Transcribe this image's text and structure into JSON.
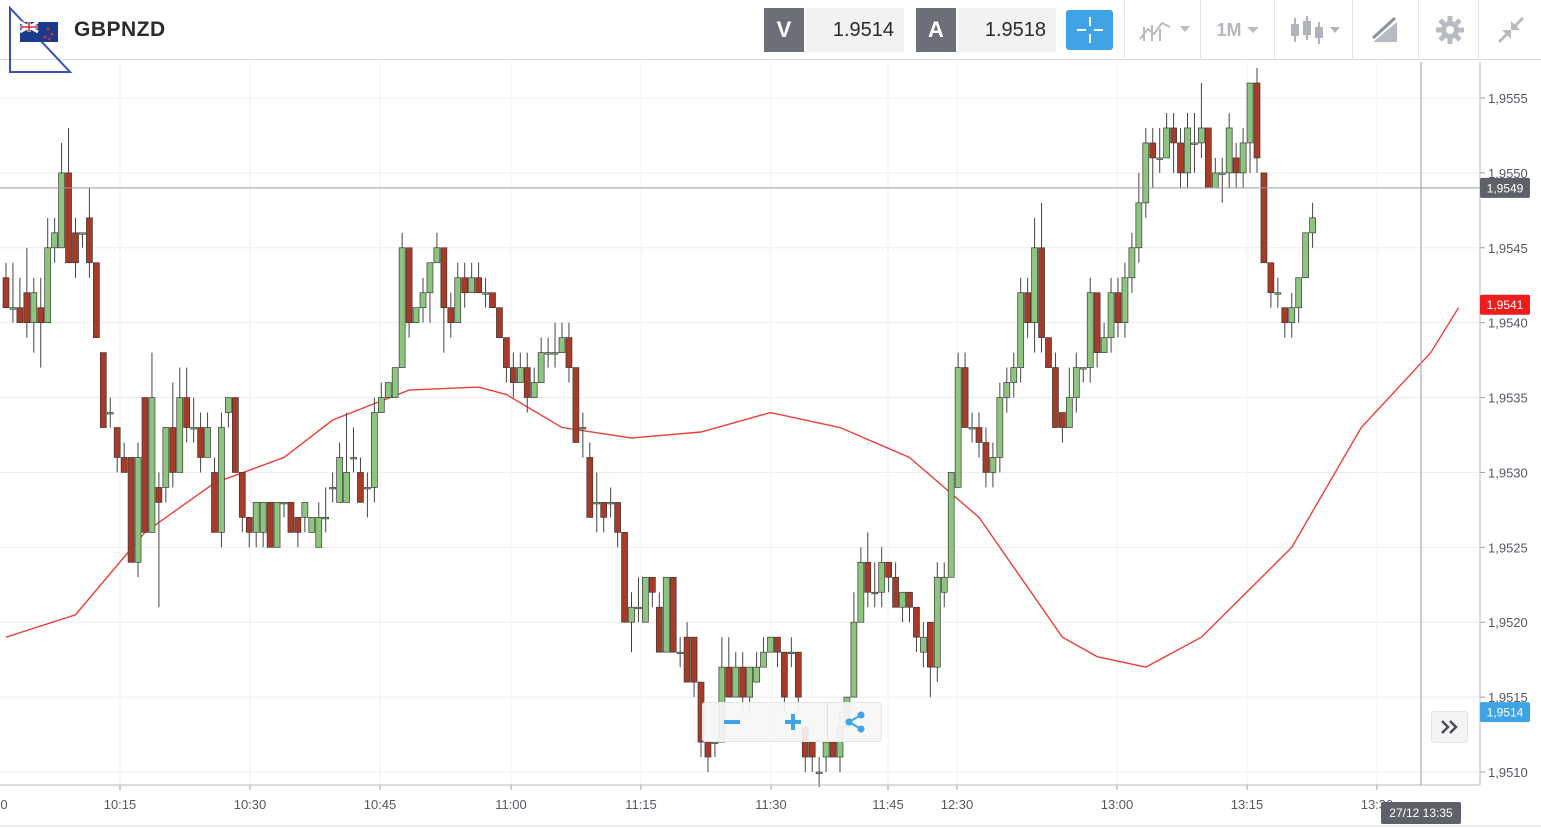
{
  "header": {
    "symbol": "GBPNZD",
    "bid_label": "V",
    "bid_value": "1.9514",
    "ask_label": "A",
    "ask_value": "1.9518",
    "timeframe": "1M",
    "icons": [
      "flag-icon",
      "crosshair-icon",
      "line-chart-icon",
      "candlestick-icon",
      "drawing-icon",
      "gear-icon",
      "collapse-icon"
    ],
    "accent_color": "#3fa4e6"
  },
  "chart_data": {
    "type": "candlestick",
    "symbol": "GBPNZD",
    "interval": "1M",
    "ylim": [
      1.95085,
      1.9557
    ],
    "y_ticks": [
      "1,9510",
      "1,9515",
      "1,9520",
      "1,9525",
      "1,9530",
      "1,9535",
      "1,9540",
      "1,9545",
      "1,9550",
      "1,9555"
    ],
    "x_ticks": [
      "10:15",
      "10:30",
      "10:45",
      "11:00",
      "11:15",
      "11:30",
      "11:45",
      "12:30",
      "13:00",
      "13:15",
      "13:30"
    ],
    "x_ticks_partial": [
      "0"
    ],
    "up_color": "#8dc47e",
    "down_color": "#a83a28",
    "candles": [
      [
        1.9543,
        1.9541,
        1.9544,
        1.9541
      ],
      [
        1.9541,
        1.9541,
        1.9544,
        1.954
      ],
      [
        1.9541,
        1.954,
        1.9543,
        1.954
      ],
      [
        1.9542,
        1.954,
        1.9545,
        1.9539
      ],
      [
        1.954,
        1.9542,
        1.9543,
        1.9538
      ],
      [
        1.9541,
        1.954,
        1.9543,
        1.9537
      ],
      [
        1.954,
        1.9545,
        1.9547,
        1.954
      ],
      [
        1.9545,
        1.9546,
        1.9547,
        1.9544
      ],
      [
        1.9545,
        1.955,
        1.9552,
        1.9545
      ],
      [
        1.955,
        1.9544,
        1.9553,
        1.9544
      ],
      [
        1.9546,
        1.9544,
        1.9547,
        1.9543
      ],
      [
        1.9546,
        1.9546,
        1.9546,
        1.9545
      ],
      [
        1.9547,
        1.9544,
        1.9549,
        1.9543
      ],
      [
        1.9544,
        1.9539,
        1.9544,
        1.9539
      ],
      [
        1.9538,
        1.9533,
        1.9538,
        1.9533
      ],
      [
        1.9534,
        1.9534,
        1.9535,
        1.9533
      ],
      [
        1.9533,
        1.9531,
        1.9533,
        1.953
      ],
      [
        1.9531,
        1.953,
        1.9532,
        1.953
      ],
      [
        1.9531,
        1.9524,
        1.9531,
        1.9524
      ],
      [
        1.9524,
        1.9531,
        1.9532,
        1.9523
      ],
      [
        1.9535,
        1.9526,
        1.9535,
        1.9526
      ],
      [
        1.9526,
        1.9535,
        1.9538,
        1.9526
      ],
      [
        1.9529,
        1.9528,
        1.953,
        1.9521
      ],
      [
        1.9529,
        1.9533,
        1.9533,
        1.9528
      ],
      [
        1.9533,
        1.953,
        1.9536,
        1.9529
      ],
      [
        1.953,
        1.9535,
        1.9537,
        1.953
      ],
      [
        1.9535,
        1.9533,
        1.9537,
        1.9532
      ],
      [
        1.9533,
        1.9533,
        1.9535,
        1.9532
      ],
      [
        1.9533,
        1.9531,
        1.9534,
        1.953
      ],
      [
        1.9531,
        1.9533,
        1.9534,
        1.9531
      ],
      [
        1.953,
        1.9526,
        1.9531,
        1.9526
      ],
      [
        1.9526,
        1.9533,
        1.9534,
        1.9525
      ],
      [
        1.9534,
        1.9535,
        1.9535,
        1.9533
      ],
      [
        1.9535,
        1.953,
        1.9535,
        1.953
      ],
      [
        1.953,
        1.9527,
        1.953,
        1.9526
      ],
      [
        1.9527,
        1.9526,
        1.9527,
        1.9525
      ],
      [
        1.9526,
        1.9528,
        1.9528,
        1.9525
      ],
      [
        1.9526,
        1.9528,
        1.9528,
        1.9525
      ],
      [
        1.9528,
        1.9525,
        1.9528,
        1.9525
      ],
      [
        1.9525,
        1.9528,
        1.9528,
        1.9525
      ],
      [
        1.9528,
        1.9528,
        1.9528,
        1.9527
      ],
      [
        1.9528,
        1.9526,
        1.9528,
        1.9526
      ],
      [
        1.9527,
        1.9526,
        1.9527,
        1.9525
      ],
      [
        1.9527,
        1.9528,
        1.9528,
        1.9526
      ],
      [
        1.9526,
        1.9527,
        1.9527,
        1.9526
      ],
      [
        1.9525,
        1.9527,
        1.9528,
        1.9525
      ],
      [
        1.9527,
        1.9527,
        1.9529,
        1.9526
      ],
      [
        1.9529,
        1.9529,
        1.953,
        1.9528
      ],
      [
        1.9528,
        1.9531,
        1.9532,
        1.9528
      ],
      [
        1.9528,
        1.953,
        1.9534,
        1.9528
      ],
      [
        1.9531,
        1.9531,
        1.9533,
        1.953
      ],
      [
        1.953,
        1.9528,
        1.9531,
        1.9528
      ],
      [
        1.9529,
        1.9529,
        1.953,
        1.9527
      ],
      [
        1.9529,
        1.9534,
        1.9535,
        1.9528
      ],
      [
        1.9534,
        1.9535,
        1.9536,
        1.9534
      ],
      [
        1.9535,
        1.9536,
        1.9536,
        1.9535
      ],
      [
        1.9535,
        1.9537,
        1.9537,
        1.9535
      ],
      [
        1.9537,
        1.9545,
        1.9546,
        1.9537
      ],
      [
        1.9545,
        1.954,
        1.9545,
        1.9539
      ],
      [
        1.954,
        1.9541,
        1.9541,
        1.954
      ],
      [
        1.9541,
        1.9542,
        1.9543,
        1.954
      ],
      [
        1.9542,
        1.9544,
        1.9544,
        1.954
      ],
      [
        1.9544,
        1.9545,
        1.9546,
        1.9544
      ],
      [
        1.9545,
        1.9541,
        1.9545,
        1.9538
      ],
      [
        1.9541,
        1.954,
        1.9542,
        1.9539
      ],
      [
        1.954,
        1.9543,
        1.9544,
        1.954
      ],
      [
        1.9543,
        1.9542,
        1.9544,
        1.9541
      ],
      [
        1.9542,
        1.9543,
        1.9544,
        1.9542
      ],
      [
        1.9543,
        1.9542,
        1.9544,
        1.9542
      ],
      [
        1.9542,
        1.9542,
        1.9543,
        1.9541
      ],
      [
        1.9542,
        1.9541,
        1.9542,
        1.9541
      ],
      [
        1.9541,
        1.9539,
        1.9541,
        1.9539
      ],
      [
        1.9539,
        1.9537,
        1.9539,
        1.9536
      ],
      [
        1.9537,
        1.9536,
        1.9538,
        1.9535
      ],
      [
        1.9536,
        1.9537,
        1.9538,
        1.9536
      ],
      [
        1.9537,
        1.9535,
        1.9538,
        1.9534
      ],
      [
        1.9535,
        1.9536,
        1.9537,
        1.9535
      ],
      [
        1.9536,
        1.9538,
        1.9539,
        1.9536
      ],
      [
        1.9538,
        1.9538,
        1.9539,
        1.9537
      ],
      [
        1.9538,
        1.9538,
        1.954,
        1.9537
      ],
      [
        1.9538,
        1.9539,
        1.954,
        1.9538
      ],
      [
        1.9539,
        1.9537,
        1.954,
        1.9536
      ],
      [
        1.9537,
        1.9532,
        1.9537,
        1.9532
      ],
      [
        1.9533,
        1.9533,
        1.9534,
        1.9531
      ],
      [
        1.9531,
        1.9527,
        1.9532,
        1.9527
      ],
      [
        1.9528,
        1.9528,
        1.953,
        1.9526
      ],
      [
        1.9528,
        1.9527,
        1.9528,
        1.9526
      ],
      [
        1.9528,
        1.9528,
        1.9529,
        1.9527
      ],
      [
        1.9528,
        1.9526,
        1.9528,
        1.9525
      ],
      [
        1.9526,
        1.952,
        1.9526,
        1.952
      ],
      [
        1.952,
        1.9521,
        1.9522,
        1.9518
      ],
      [
        1.9521,
        1.9521,
        1.9523,
        1.952
      ],
      [
        1.952,
        1.9523,
        1.9523,
        1.952
      ],
      [
        1.9523,
        1.9522,
        1.9523,
        1.9521
      ],
      [
        1.9521,
        1.9518,
        1.9522,
        1.9518
      ],
      [
        1.9518,
        1.9523,
        1.9523,
        1.9518
      ],
      [
        1.9523,
        1.9518,
        1.9523,
        1.9518
      ],
      [
        1.9518,
        1.9518,
        1.9519,
        1.9517
      ],
      [
        1.9519,
        1.9516,
        1.952,
        1.9516
      ],
      [
        1.9519,
        1.9516,
        1.9519,
        1.9515
      ],
      [
        1.9516,
        1.9512,
        1.9516,
        1.9511
      ],
      [
        1.9512,
        1.9511,
        1.9512,
        1.951
      ],
      [
        1.9512,
        1.9512,
        1.9512,
        1.9511
      ],
      [
        1.9512,
        1.9517,
        1.9519,
        1.9512
      ],
      [
        1.9517,
        1.9515,
        1.9519,
        1.9515
      ],
      [
        1.9515,
        1.9517,
        1.9518,
        1.9515
      ],
      [
        1.9517,
        1.9515,
        1.9518,
        1.9514
      ],
      [
        1.9515,
        1.9517,
        1.9517,
        1.9514
      ],
      [
        1.9516,
        1.9517,
        1.9518,
        1.9516
      ],
      [
        1.9517,
        1.9518,
        1.9519,
        1.9517
      ],
      [
        1.9518,
        1.9519,
        1.9519,
        1.9518
      ],
      [
        1.9519,
        1.9518,
        1.9519,
        1.9517
      ],
      [
        1.9518,
        1.9515,
        1.9518,
        1.9514
      ],
      [
        1.9518,
        1.9518,
        1.9519,
        1.9517
      ],
      [
        1.9518,
        1.9515,
        1.9518,
        1.9514
      ],
      [
        1.9513,
        1.9511,
        1.9513,
        1.951
      ],
      [
        1.9512,
        1.9511,
        1.9512,
        1.951
      ],
      [
        1.951,
        1.951,
        1.9511,
        1.9509
      ],
      [
        1.9511,
        1.9512,
        1.9512,
        1.951
      ],
      [
        1.9512,
        1.9511,
        1.9512,
        1.9511
      ],
      [
        1.9511,
        1.9513,
        1.9514,
        1.951
      ],
      [
        1.9513,
        1.9515,
        1.9515,
        1.9513
      ],
      [
        1.9515,
        1.952,
        1.9522,
        1.9515
      ],
      [
        1.952,
        1.9524,
        1.9525,
        1.952
      ],
      [
        1.9524,
        1.9522,
        1.9526,
        1.9521
      ],
      [
        1.9522,
        1.9522,
        1.9524,
        1.9521
      ],
      [
        1.9522,
        1.9524,
        1.9525,
        1.9521
      ],
      [
        1.9524,
        1.9523,
        1.9524,
        1.9522
      ],
      [
        1.9523,
        1.9521,
        1.9524,
        1.9521
      ],
      [
        1.9521,
        1.9522,
        1.9522,
        1.952
      ],
      [
        1.9522,
        1.9521,
        1.9522,
        1.952
      ],
      [
        1.9521,
        1.9519,
        1.9521,
        1.9518
      ],
      [
        1.9518,
        1.9519,
        1.952,
        1.9517
      ],
      [
        1.952,
        1.9517,
        1.952,
        1.9515
      ],
      [
        1.9517,
        1.9523,
        1.9524,
        1.9516
      ],
      [
        1.9522,
        1.9523,
        1.9524,
        1.9521
      ],
      [
        1.9523,
        1.953,
        1.953,
        1.9523
      ],
      [
        1.9529,
        1.9537,
        1.9538,
        1.9529
      ],
      [
        1.9537,
        1.9533,
        1.9538,
        1.9533
      ],
      [
        1.9533,
        1.9533,
        1.9534,
        1.9532
      ],
      [
        1.9533,
        1.9532,
        1.9534,
        1.9531
      ],
      [
        1.9532,
        1.953,
        1.9533,
        1.9529
      ],
      [
        1.953,
        1.9531,
        1.9532,
        1.9529
      ],
      [
        1.9531,
        1.9535,
        1.9536,
        1.953
      ],
      [
        1.9535,
        1.9536,
        1.9537,
        1.9534
      ],
      [
        1.9536,
        1.9537,
        1.9538,
        1.9535
      ],
      [
        1.9537,
        1.9542,
        1.9543,
        1.9536
      ],
      [
        1.9542,
        1.954,
        1.9543,
        1.9539
      ],
      [
        1.954,
        1.9545,
        1.9547,
        1.9538
      ],
      [
        1.9545,
        1.9539,
        1.9548,
        1.9538
      ],
      [
        1.9539,
        1.9537,
        1.9539,
        1.9537
      ],
      [
        1.9537,
        1.9533,
        1.9538,
        1.9533
      ],
      [
        1.9534,
        1.9533,
        1.9534,
        1.9532
      ],
      [
        1.9533,
        1.9535,
        1.9537,
        1.9533
      ],
      [
        1.9535,
        1.9537,
        1.9538,
        1.9534
      ],
      [
        1.9537,
        1.9537,
        1.9537,
        1.9536
      ],
      [
        1.9537,
        1.9542,
        1.9543,
        1.9536
      ],
      [
        1.9542,
        1.9538,
        1.9542,
        1.9537
      ],
      [
        1.9538,
        1.9539,
        1.954,
        1.9538
      ],
      [
        1.9539,
        1.9542,
        1.9543,
        1.9538
      ],
      [
        1.9542,
        1.954,
        1.9543,
        1.9539
      ],
      [
        1.954,
        1.9543,
        1.9544,
        1.9539
      ],
      [
        1.9543,
        1.9545,
        1.9546,
        1.9542
      ],
      [
        1.9545,
        1.9548,
        1.955,
        1.9544
      ],
      [
        1.9548,
        1.9552,
        1.9553,
        1.9547
      ],
      [
        1.9552,
        1.9551,
        1.9553,
        1.9549
      ],
      [
        1.9551,
        1.9551,
        1.9553,
        1.955
      ],
      [
        1.9551,
        1.9553,
        1.9554,
        1.9551
      ],
      [
        1.9553,
        1.9552,
        1.9554,
        1.955
      ],
      [
        1.9552,
        1.955,
        1.9553,
        1.9549
      ],
      [
        1.955,
        1.9553,
        1.9554,
        1.9549
      ],
      [
        1.9552,
        1.9552,
        1.9554,
        1.955
      ],
      [
        1.9552,
        1.9553,
        1.9556,
        1.9551
      ],
      [
        1.9553,
        1.9549,
        1.9553,
        1.9549
      ],
      [
        1.9549,
        1.955,
        1.9551,
        1.9549
      ],
      [
        1.955,
        1.955,
        1.9551,
        1.9548
      ],
      [
        1.955,
        1.9553,
        1.9554,
        1.9549
      ],
      [
        1.9551,
        1.955,
        1.9552,
        1.9549
      ],
      [
        1.955,
        1.9552,
        1.9553,
        1.9549
      ],
      [
        1.9552,
        1.9556,
        1.9556,
        1.955
      ],
      [
        1.9556,
        1.9551,
        1.9557,
        1.955
      ],
      [
        1.955,
        1.9544,
        1.955,
        1.9544
      ],
      [
        1.9544,
        1.9542,
        1.9544,
        1.9541
      ],
      [
        1.9542,
        1.9542,
        1.9543,
        1.9541
      ],
      [
        1.9541,
        1.954,
        1.9541,
        1.9539
      ],
      [
        1.954,
        1.9541,
        1.9542,
        1.9539
      ],
      [
        1.9541,
        1.9543,
        1.9543,
        1.954
      ],
      [
        1.9543,
        1.9546,
        1.9546,
        1.9543
      ],
      [
        1.9546,
        1.9547,
        1.9548,
        1.9545
      ]
    ],
    "moving_average": {
      "color": "#e8413b",
      "points": [
        [
          0,
          1.9519
        ],
        [
          10,
          1.95205
        ],
        [
          20,
          1.9526
        ],
        [
          30,
          1.95293
        ],
        [
          40,
          1.9531
        ],
        [
          47,
          1.95335
        ],
        [
          58,
          1.95355
        ],
        [
          68,
          1.95357
        ],
        [
          72,
          1.95352
        ],
        [
          80,
          1.9533
        ],
        [
          90,
          1.95323
        ],
        [
          100,
          1.95327
        ],
        [
          110,
          1.9534
        ],
        [
          120,
          1.9533
        ],
        [
          130,
          1.9531
        ],
        [
          140,
          1.9527
        ],
        [
          146,
          1.9523
        ],
        [
          152,
          1.9519
        ],
        [
          157,
          1.95177
        ],
        [
          164,
          1.9517
        ],
        [
          172,
          1.9519
        ],
        [
          185,
          1.9525
        ],
        [
          195,
          1.9533
        ],
        [
          205,
          1.9538
        ],
        [
          209,
          1.9541
        ]
      ]
    },
    "horizontal_line_label": "1,9549",
    "last_price_label": "1,9541",
    "bid_price_label": "1,9514",
    "time_cursor_label": "27/12 13:35"
  }
}
